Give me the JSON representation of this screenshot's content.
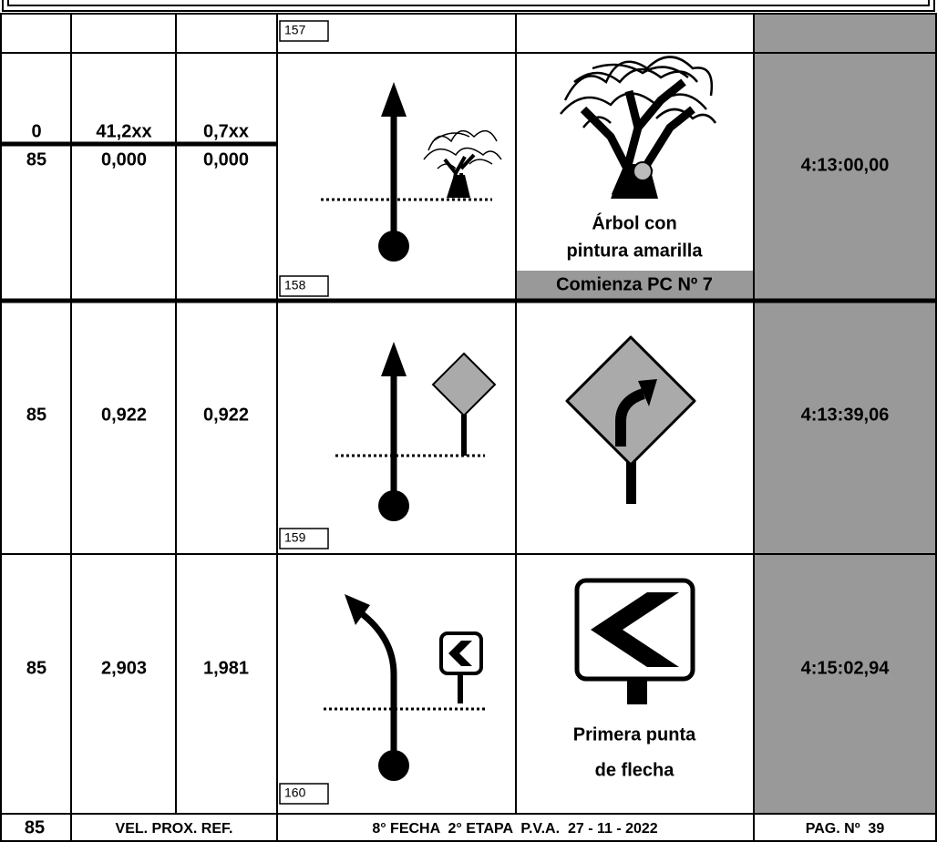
{
  "rows": [
    {
      "box": "157"
    },
    {
      "speed": "0",
      "distance": "41,2xx",
      "partial": "0,7xx",
      "speed2": "85",
      "distance2": "0,000",
      "partial2": "0,000",
      "box": "158",
      "note": [
        "Árbol con",
        "pintura amarilla"
      ],
      "note_highlight": "Comienza PC Nº 7",
      "time": "4:13:00,00"
    },
    {
      "speed": "85",
      "distance": "0,922",
      "partial": "0,922",
      "box": "159",
      "time": "4:13:39,06"
    },
    {
      "speed": "85",
      "distance": "2,903",
      "partial": "1,981",
      "box": "160",
      "note": [
        "Primera punta",
        "de flecha"
      ],
      "time": "4:15:02,94"
    }
  ],
  "footer": {
    "speed": "85",
    "label": "VEL. PROX. REF.",
    "event": "8° FECHA  2° ETAPA  P.V.A.  27 - 11 - 2022",
    "page": "PAG. Nº  39"
  }
}
